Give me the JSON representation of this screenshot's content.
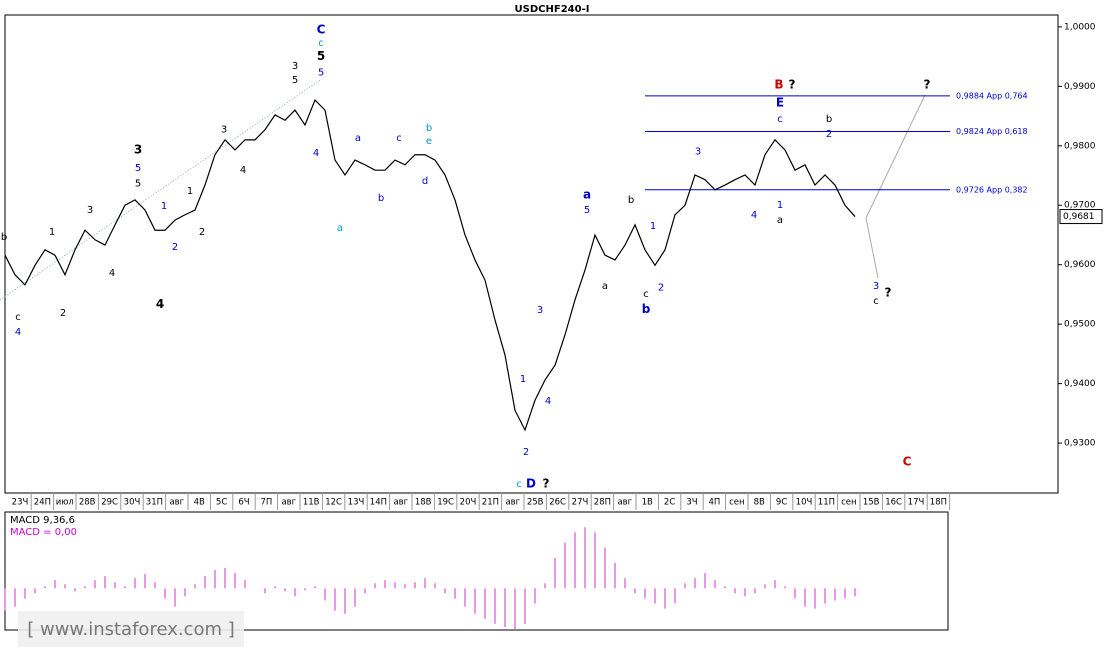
{
  "chart_data": {
    "type": "line",
    "title": "USDCHF240-I",
    "categories": [
      "23Ч",
      "24П",
      "июл",
      "28В",
      "29С",
      "30Ч",
      "31П",
      "авг",
      "4В",
      "5С",
      "6Ч",
      "7П",
      "авг",
      "11В",
      "12С",
      "13Ч",
      "14П",
      "авг",
      "18В",
      "19С",
      "20Ч",
      "21П",
      "авг",
      "25В",
      "26С",
      "27Ч",
      "28П",
      "авг",
      "1В",
      "2С",
      "3Ч",
      "4П",
      "сен",
      "8В",
      "9С",
      "10Ч",
      "11П",
      "сен",
      "15В",
      "16С",
      "17Ч",
      "18П"
    ],
    "x": [
      0,
      1,
      2,
      3,
      4,
      5,
      6,
      7,
      8,
      9,
      10,
      11,
      12,
      13,
      14,
      15,
      16,
      17,
      18,
      19,
      20,
      21,
      22,
      23,
      24,
      25,
      26,
      27,
      28,
      29,
      30,
      31,
      32,
      33,
      34,
      35,
      36,
      37,
      38,
      39,
      40,
      41,
      42,
      43,
      44,
      45,
      46,
      47,
      48,
      49,
      50,
      51,
      52,
      53,
      54,
      55,
      56,
      57,
      58,
      59,
      60,
      61,
      62,
      63,
      64,
      65,
      66,
      67,
      68,
      69,
      70,
      71,
      72,
      73,
      74,
      75,
      76,
      77,
      78,
      79,
      80,
      81,
      82,
      83,
      84,
      85
    ],
    "series": [
      {
        "name": "USDCHF240-I",
        "color": "#000000",
        "values": [
          0.9616,
          0.9583,
          0.9566,
          0.9599,
          0.9625,
          0.9616,
          0.9583,
          0.9625,
          0.9658,
          0.9642,
          0.9633,
          0.9667,
          0.97,
          0.9709,
          0.9692,
          0.9658,
          0.9658,
          0.9675,
          0.9684,
          0.9692,
          0.9734,
          0.9785,
          0.981,
          0.9793,
          0.981,
          0.981,
          0.9827,
          0.9852,
          0.9843,
          0.986,
          0.9835,
          0.9877,
          0.986,
          0.9776,
          0.9751,
          0.9776,
          0.9768,
          0.9759,
          0.9759,
          0.9776,
          0.9768,
          0.9785,
          0.9785,
          0.9776,
          0.9751,
          0.9709,
          0.965,
          0.9608,
          0.9574,
          0.9507,
          0.9448,
          0.9355,
          0.9322,
          0.9372,
          0.9406,
          0.9431,
          0.9482,
          0.9541,
          0.9591,
          0.965,
          0.9616,
          0.9608,
          0.9633,
          0.9667,
          0.9625,
          0.9599,
          0.9625,
          0.9684,
          0.97,
          0.9751,
          0.9743,
          0.9726,
          0.9734,
          0.9743,
          0.9751,
          0.9734,
          0.9785,
          0.981,
          0.9793,
          0.9759,
          0.9768,
          0.9734,
          0.9751,
          0.9734,
          0.97,
          0.9681
        ]
      }
    ],
    "xlim": [
      -0.5,
      94.5
    ],
    "ylim": [
      0.9216,
      1.002
    ],
    "yticks": [
      {
        "value": 1.0,
        "label": "1,0000"
      },
      {
        "value": 0.99,
        "label": "0,9900"
      },
      {
        "value": 0.98,
        "label": "0,9800"
      },
      {
        "value": 0.97,
        "label": "0,9700"
      },
      {
        "value": 0.96,
        "label": "0,9600"
      },
      {
        "value": 0.95,
        "label": "0,9500"
      },
      {
        "value": 0.94,
        "label": "0,9400"
      },
      {
        "value": 0.93,
        "label": "0,9300"
      }
    ],
    "current_price": {
      "value": 0.9681,
      "label": "0,9681"
    },
    "levels_start": 64,
    "levels": [
      {
        "value": 0.9884,
        "label": "0,9884 App 0,764"
      },
      {
        "value": 0.9824,
        "label": "0,9824 App 0,618"
      },
      {
        "value": 0.9726,
        "label": "0,9726 App 0,382"
      }
    ],
    "level_color": "#0000cc",
    "annotations": [
      {
        "text": "C",
        "x": 31.6,
        "y": 0.9995,
        "color": "#0000cc",
        "bold": true
      },
      {
        "text": "c",
        "x": 31.6,
        "y": 0.9973,
        "color": "#0099cc",
        "bold": false
      },
      {
        "text": "5",
        "x": 31.6,
        "y": 0.995,
        "color": "#000000",
        "bold": true
      },
      {
        "text": "5",
        "x": 31.6,
        "y": 0.9923,
        "color": "#0000cc",
        "bold": false
      },
      {
        "text": "3",
        "x": 29,
        "y": 0.9934,
        "color": "#000000",
        "bold": false
      },
      {
        "text": "5",
        "x": 29,
        "y": 0.9911,
        "color": "#000000",
        "bold": false
      },
      {
        "text": "4",
        "x": 31.1,
        "y": 0.9788,
        "color": "#0000cc",
        "bold": false
      },
      {
        "text": "3",
        "x": 13.3,
        "y": 0.9793,
        "color": "#000000",
        "bold": true
      },
      {
        "text": "5",
        "x": 13.3,
        "y": 0.9763,
        "color": "#0000cc",
        "bold": false
      },
      {
        "text": "5",
        "x": 13.3,
        "y": 0.9737,
        "color": "#000000",
        "bold": false
      },
      {
        "text": "3",
        "x": 8.5,
        "y": 0.9692,
        "color": "#000000",
        "bold": false
      },
      {
        "text": "1",
        "x": 4.7,
        "y": 0.9655,
        "color": "#000000",
        "bold": false
      },
      {
        "text": "b",
        "x": -0.1,
        "y": 0.9647,
        "color": "#000000",
        "bold": false
      },
      {
        "text": "c",
        "x": 1.3,
        "y": 0.9512,
        "color": "#000000",
        "bold": false
      },
      {
        "text": "4",
        "x": 1.3,
        "y": 0.9487,
        "color": "#0000cc",
        "bold": false
      },
      {
        "text": "2",
        "x": 5.8,
        "y": 0.9519,
        "color": "#000000",
        "bold": false
      },
      {
        "text": "4",
        "x": 10.7,
        "y": 0.9586,
        "color": "#000000",
        "bold": false
      },
      {
        "text": "1",
        "x": 15.9,
        "y": 0.9699,
        "color": "#0000cc",
        "bold": false
      },
      {
        "text": "2",
        "x": 17,
        "y": 0.963,
        "color": "#0000cc",
        "bold": false
      },
      {
        "text": "1",
        "x": 18.5,
        "y": 0.9724,
        "color": "#000000",
        "bold": false
      },
      {
        "text": "2",
        "x": 19.7,
        "y": 0.9655,
        "color": "#000000",
        "bold": false
      },
      {
        "text": "4",
        "x": 15.5,
        "y": 0.9533,
        "color": "#000000",
        "bold": true
      },
      {
        "text": "3",
        "x": 21.9,
        "y": 0.9827,
        "color": "#000000",
        "bold": false
      },
      {
        "text": "4",
        "x": 23.8,
        "y": 0.9759,
        "color": "#000000",
        "bold": false
      },
      {
        "text": "a",
        "x": 33.5,
        "y": 0.9662,
        "color": "#0099cc",
        "bold": false
      },
      {
        "text": "a",
        "x": 35.3,
        "y": 0.9813,
        "color": "#0000cc",
        "bold": false
      },
      {
        "text": "b",
        "x": 37.6,
        "y": 0.9712,
        "color": "#0000cc",
        "bold": false
      },
      {
        "text": "c",
        "x": 39.4,
        "y": 0.9813,
        "color": "#0000cc",
        "bold": false
      },
      {
        "text": "b",
        "x": 42.4,
        "y": 0.983,
        "color": "#0099cc",
        "bold": false
      },
      {
        "text": "e",
        "x": 42.4,
        "y": 0.9808,
        "color": "#0099cc",
        "bold": false
      },
      {
        "text": "d",
        "x": 42,
        "y": 0.9741,
        "color": "#0000cc",
        "bold": false
      },
      {
        "text": "a",
        "x": 58.2,
        "y": 0.9717,
        "color": "#0000cc",
        "bold": true
      },
      {
        "text": "5",
        "x": 58.2,
        "y": 0.9692,
        "color": "#0000cc",
        "bold": false
      },
      {
        "text": "3",
        "x": 53.5,
        "y": 0.9524,
        "color": "#0000cc",
        "bold": false
      },
      {
        "text": "1",
        "x": 51.8,
        "y": 0.9408,
        "color": "#0000cc",
        "bold": false
      },
      {
        "text": "4",
        "x": 54.3,
        "y": 0.9371,
        "color": "#0000cc",
        "bold": false
      },
      {
        "text": "2",
        "x": 52.1,
        "y": 0.9285,
        "color": "#0000cc",
        "bold": false
      },
      {
        "text": "c",
        "x": 51.4,
        "y": 0.9231,
        "color": "#0099cc",
        "bold": false
      },
      {
        "text": "D",
        "x": 52.6,
        "y": 0.9231,
        "color": "#0000cc",
        "bold": true
      },
      {
        "text": "?",
        "x": 54.1,
        "y": 0.9231,
        "color": "#000000",
        "bold": true
      },
      {
        "text": "b",
        "x": 62.6,
        "y": 0.9709,
        "color": "#000000",
        "bold": false
      },
      {
        "text": "1",
        "x": 64.8,
        "y": 0.9665,
        "color": "#0000cc",
        "bold": false
      },
      {
        "text": "a",
        "x": 60,
        "y": 0.9564,
        "color": "#000000",
        "bold": false
      },
      {
        "text": "c",
        "x": 64.1,
        "y": 0.9551,
        "color": "#000000",
        "bold": false
      },
      {
        "text": "b",
        "x": 64.1,
        "y": 0.9525,
        "color": "#0000cc",
        "bold": true
      },
      {
        "text": "2",
        "x": 65.6,
        "y": 0.9562,
        "color": "#0000cc",
        "bold": false
      },
      {
        "text": "3",
        "x": 69.3,
        "y": 0.979,
        "color": "#0000cc",
        "bold": false
      },
      {
        "text": "4",
        "x": 74.9,
        "y": 0.9684,
        "color": "#0000cc",
        "bold": false
      },
      {
        "text": "1",
        "x": 77.5,
        "y": 0.97,
        "color": "#0000cc",
        "bold": false
      },
      {
        "text": "a",
        "x": 77.5,
        "y": 0.9675,
        "color": "#000000",
        "bold": false
      },
      {
        "text": "E",
        "x": 77.5,
        "y": 0.9872,
        "color": "#0000cc",
        "bold": true
      },
      {
        "text": "c",
        "x": 77.5,
        "y": 0.9845,
        "color": "#0000cc",
        "bold": false
      },
      {
        "text": "B",
        "x": 77.4,
        "y": 0.9902,
        "color": "#cc0000",
        "bold": true
      },
      {
        "text": "?",
        "x": 78.7,
        "y": 0.9902,
        "color": "#000000",
        "bold": true
      },
      {
        "text": "b",
        "x": 82.4,
        "y": 0.9845,
        "color": "#000000",
        "bold": false
      },
      {
        "text": "2",
        "x": 82.4,
        "y": 0.982,
        "color": "#0000cc",
        "bold": false
      },
      {
        "text": "3",
        "x": 87.1,
        "y": 0.9564,
        "color": "#0000cc",
        "bold": false
      },
      {
        "text": "c",
        "x": 87.1,
        "y": 0.9539,
        "color": "#000000",
        "bold": false
      },
      {
        "text": "?",
        "x": 88.3,
        "y": 0.9552,
        "color": "#000000",
        "bold": true
      },
      {
        "text": "?",
        "x": 92.2,
        "y": 0.9902,
        "color": "#000000",
        "bold": true
      },
      {
        "text": "C",
        "x": 90.2,
        "y": 0.9268,
        "color": "#cc0000",
        "bold": true
      }
    ],
    "macd": {
      "label": "MACD 9,36,6",
      "value_label": "MACD = 0,00",
      "color": "#cc33cc",
      "ylim": [
        -41,
        75
      ],
      "values": [
        -22,
        -18,
        -10,
        -5,
        2,
        8,
        4,
        -3,
        2,
        8,
        12,
        6,
        2,
        10,
        14,
        6,
        -10,
        -18,
        -8,
        4,
        12,
        18,
        20,
        15,
        8,
        0,
        -5,
        2,
        -3,
        -8,
        -2,
        2,
        -12,
        -22,
        -25,
        -18,
        -5,
        5,
        8,
        6,
        4,
        6,
        10,
        5,
        -5,
        -10,
        -18,
        -25,
        -30,
        -35,
        -38,
        -40,
        -35,
        -15,
        5,
        30,
        45,
        55,
        60,
        55,
        40,
        25,
        10,
        -5,
        -10,
        -15,
        -20,
        -15,
        5,
        10,
        15,
        8,
        2,
        -5,
        -8,
        -5,
        4,
        8,
        2,
        -10,
        -18,
        -20,
        -15,
        -12,
        -10,
        -8
      ]
    },
    "watermark": "[ www.instaforex.com ]"
  }
}
